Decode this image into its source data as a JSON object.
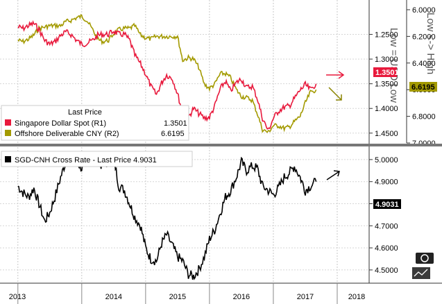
{
  "chart_data": [
    {
      "type": "line",
      "legend": {
        "title": "Last Price",
        "placement": "top-left",
        "entries": [
          {
            "label": "Singapore Dollar Spot  (R1)",
            "value": "1.3501",
            "color": "#e8193c"
          },
          {
            "label": "Offshore Deliverable CNY  (R2)",
            "value": "6.6195",
            "color": "#a39a00"
          }
        ]
      },
      "axes": {
        "r1": {
          "ticks": [
            "1.2500",
            "1.3000",
            "1.3500",
            "1.4000",
            "1.4500"
          ],
          "min": 1.2,
          "max": 1.47,
          "inverted": true
        },
        "r2": {
          "ticks": [
            "6.0000",
            "6.2000",
            "6.4000",
            "6.6000",
            "6.8000",
            "7.0000"
          ],
          "min": 6.0,
          "max": 7.0,
          "inverted": true
        },
        "r1_annotation": "Low = USD Low",
        "r2_annotation": "Low <-> High"
      },
      "last_values": {
        "sgd": "1.3501",
        "cny": "6.6195"
      },
      "series": [
        {
          "name": "Singapore Dollar Spot",
          "color": "#e8193c",
          "x": [
            2013.0,
            2013.08,
            2013.17,
            2013.25,
            2013.33,
            2013.42,
            2013.5,
            2013.58,
            2013.67,
            2013.75,
            2013.83,
            2013.92,
            2014.0,
            2014.08,
            2014.17,
            2014.25,
            2014.33,
            2014.42,
            2014.5,
            2014.58,
            2014.67,
            2014.75,
            2014.83,
            2014.92,
            2015.0,
            2015.08,
            2015.17,
            2015.25,
            2015.33,
            2015.42,
            2015.5,
            2015.58,
            2015.67,
            2015.75,
            2015.83,
            2015.92,
            2016.0,
            2016.08,
            2016.17,
            2016.25,
            2016.33,
            2016.42,
            2016.5,
            2016.58,
            2016.67,
            2016.75,
            2016.83,
            2016.92,
            2017.0,
            2017.08,
            2017.17,
            2017.25,
            2017.33,
            2017.42,
            2017.5,
            2017.58,
            2017.67
          ],
          "values": [
            1.235,
            1.238,
            1.232,
            1.228,
            1.24,
            1.262,
            1.27,
            1.265,
            1.252,
            1.245,
            1.25,
            1.262,
            1.27,
            1.268,
            1.262,
            1.252,
            1.25,
            1.25,
            1.243,
            1.25,
            1.25,
            1.262,
            1.292,
            1.31,
            1.33,
            1.355,
            1.372,
            1.348,
            1.332,
            1.34,
            1.37,
            1.41,
            1.418,
            1.4,
            1.41,
            1.42,
            1.418,
            1.396,
            1.36,
            1.345,
            1.365,
            1.348,
            1.34,
            1.358,
            1.355,
            1.38,
            1.42,
            1.445,
            1.42,
            1.405,
            1.398,
            1.395,
            1.38,
            1.363,
            1.352,
            1.362,
            1.35
          ]
        },
        {
          "name": "Offshore Deliverable CNY",
          "color": "#a39a00",
          "x": [
            2013.0,
            2013.08,
            2013.17,
            2013.25,
            2013.33,
            2013.42,
            2013.5,
            2013.58,
            2013.67,
            2013.75,
            2013.83,
            2013.92,
            2014.0,
            2014.08,
            2014.17,
            2014.25,
            2014.33,
            2014.42,
            2014.5,
            2014.58,
            2014.67,
            2014.75,
            2014.83,
            2014.92,
            2015.0,
            2015.08,
            2015.17,
            2015.25,
            2015.33,
            2015.42,
            2015.5,
            2015.58,
            2015.67,
            2015.75,
            2015.83,
            2015.92,
            2016.0,
            2016.08,
            2016.17,
            2016.25,
            2016.33,
            2016.42,
            2016.5,
            2016.58,
            2016.67,
            2016.75,
            2016.83,
            2016.92,
            2017.0,
            2017.08,
            2017.17,
            2017.25,
            2017.33,
            2017.42,
            2017.5,
            2017.58,
            2017.67
          ],
          "values": [
            6.23,
            6.24,
            6.22,
            6.19,
            6.14,
            6.13,
            6.12,
            6.12,
            6.12,
            6.09,
            6.08,
            6.06,
            6.05,
            6.08,
            6.15,
            6.22,
            6.24,
            6.23,
            6.18,
            6.15,
            6.14,
            6.14,
            6.12,
            6.19,
            6.21,
            6.22,
            6.2,
            6.2,
            6.2,
            6.2,
            6.2,
            6.38,
            6.36,
            6.37,
            6.43,
            6.56,
            6.59,
            6.56,
            6.48,
            6.48,
            6.51,
            6.6,
            6.65,
            6.66,
            6.68,
            6.78,
            6.9,
            6.92,
            6.87,
            6.87,
            6.89,
            6.88,
            6.84,
            6.8,
            6.7,
            6.62,
            6.6
          ]
        }
      ]
    },
    {
      "type": "line",
      "legend": {
        "title": "SGD-CNH Cross Rate - Last Price 4.9031",
        "placement": "top-left",
        "entries": [
          {
            "label": "SGD-CNH Cross Rate - Last Price",
            "value": "4.9031",
            "color": "#000000"
          }
        ]
      },
      "axes": {
        "right": {
          "ticks": [
            "5.0000",
            "4.9000",
            "4.8000",
            "4.7000",
            "4.6000",
            "4.5000"
          ],
          "min": 4.44,
          "max": 5.05
        }
      },
      "x_ticks": [
        "2013",
        "2014",
        "2015",
        "2016",
        "2017",
        "2018"
      ],
      "last_value": "4.9031",
      "series": [
        {
          "name": "SGD-CNH Cross Rate",
          "color": "#000000",
          "x": [
            2013.0,
            2013.08,
            2013.17,
            2013.25,
            2013.33,
            2013.42,
            2013.5,
            2013.58,
            2013.67,
            2013.75,
            2013.83,
            2013.92,
            2014.0,
            2014.08,
            2014.17,
            2014.25,
            2014.33,
            2014.42,
            2014.5,
            2014.58,
            2014.67,
            2014.75,
            2014.83,
            2014.92,
            2015.0,
            2015.08,
            2015.17,
            2015.25,
            2015.33,
            2015.42,
            2015.5,
            2015.58,
            2015.67,
            2015.75,
            2015.83,
            2015.92,
            2016.0,
            2016.08,
            2016.17,
            2016.25,
            2016.33,
            2016.42,
            2016.5,
            2016.58,
            2016.67,
            2016.75,
            2016.83,
            2016.92,
            2017.0,
            2017.08,
            2017.17,
            2017.25,
            2017.33,
            2017.42,
            2017.5,
            2017.58,
            2017.67
          ],
          "values": [
            4.88,
            4.85,
            4.83,
            4.87,
            4.8,
            4.72,
            4.76,
            4.83,
            4.92,
            4.99,
            5.01,
            4.99,
            4.96,
            5.0,
            5.02,
            4.99,
            4.97,
            4.99,
            5.01,
            4.88,
            4.86,
            4.8,
            4.74,
            4.7,
            4.6,
            4.55,
            4.54,
            4.62,
            4.66,
            4.61,
            4.56,
            4.54,
            4.48,
            4.47,
            4.5,
            4.56,
            4.64,
            4.68,
            4.76,
            4.83,
            4.86,
            4.92,
            4.99,
            4.95,
            4.97,
            4.96,
            4.88,
            4.86,
            4.84,
            4.87,
            4.92,
            4.94,
            4.97,
            4.92,
            4.86,
            4.88,
            4.9
          ]
        }
      ]
    }
  ]
}
